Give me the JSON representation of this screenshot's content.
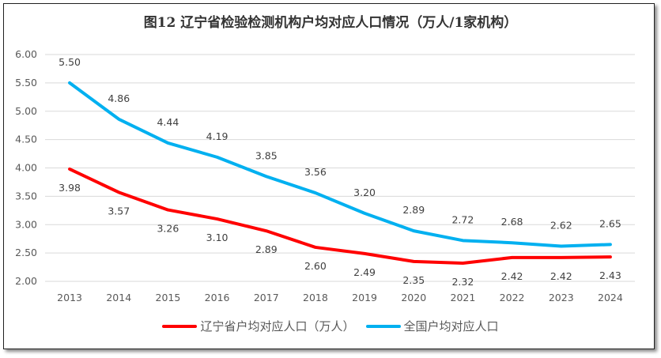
{
  "chart_data": {
    "type": "line",
    "title": "图12 辽宁省检验检测机构户均对应人口情况（万人/1家机构）",
    "categories": [
      "2013",
      "2014",
      "2015",
      "2016",
      "2017",
      "2018",
      "2019",
      "2020",
      "2021",
      "2022",
      "2023",
      "2024"
    ],
    "ylim": [
      2.0,
      6.0
    ],
    "yticks": [
      "2.00",
      "2.50",
      "3.00",
      "3.50",
      "4.00",
      "4.50",
      "5.00",
      "5.50",
      "6.00"
    ],
    "grid": true,
    "legend_position": "bottom",
    "series": [
      {
        "name": "辽宁省户均对应人口（万人）",
        "color": "#FF0000",
        "values": [
          3.98,
          3.57,
          3.26,
          3.1,
          2.89,
          2.6,
          2.49,
          2.35,
          2.32,
          2.42,
          2.42,
          2.43
        ]
      },
      {
        "name": "全国户均对应人口",
        "color": "#00B0F0",
        "values": [
          5.5,
          4.86,
          4.44,
          4.19,
          3.85,
          3.56,
          3.2,
          2.89,
          2.72,
          2.68,
          2.62,
          2.65
        ]
      }
    ]
  }
}
